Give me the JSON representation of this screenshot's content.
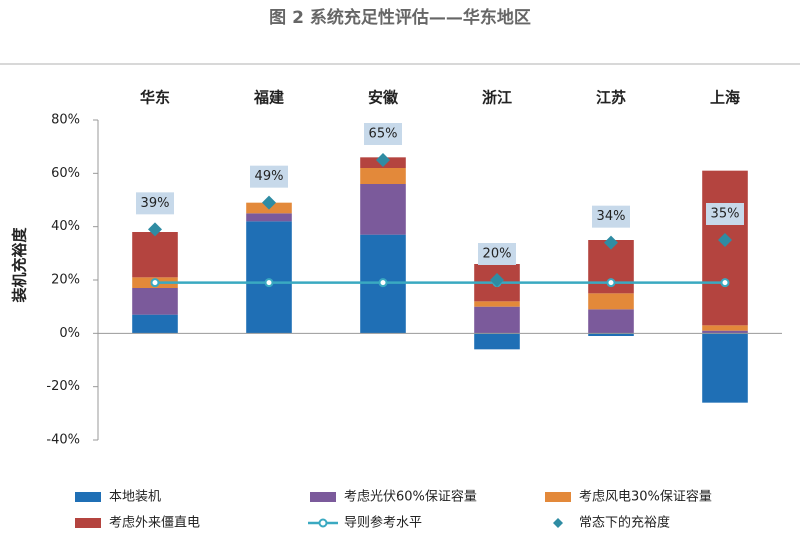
{
  "chart_data": {
    "type": "bar",
    "title": "图 2 系统充足性评估——华东地区",
    "y_label": "装机充裕度",
    "categories": [
      "华东",
      "福建",
      "安徽",
      "浙江",
      "江苏",
      "上海"
    ],
    "ylim": [
      -40,
      80
    ],
    "yticks": [
      {
        "value": -40,
        "label": "-40%"
      },
      {
        "value": -20,
        "label": "-20%"
      },
      {
        "value": 0,
        "label": "0%"
      },
      {
        "value": 20,
        "label": "20%"
      },
      {
        "value": 40,
        "label": "40%"
      },
      {
        "value": 60,
        "label": "60%"
      },
      {
        "value": 80,
        "label": "80%"
      }
    ],
    "series": [
      {
        "name": "本地装机",
        "type": "bar",
        "color": "#1f6fb5",
        "values": [
          7,
          42,
          37,
          -6,
          -1,
          -26
        ]
      },
      {
        "name": "考虑光伏60%保证容量",
        "type": "bar",
        "color": "#7b5a9b",
        "values": [
          10,
          3,
          19,
          10,
          9,
          1
        ]
      },
      {
        "name": "考虑风电30%保证容量",
        "type": "bar",
        "color": "#e3893a",
        "values": [
          4,
          4,
          6,
          2,
          6,
          2
        ]
      },
      {
        "name": "考虑外来僵直电",
        "type": "bar",
        "color": "#b4443f",
        "values": [
          17,
          0,
          4,
          14,
          20,
          58
        ]
      },
      {
        "name": "导则参考水平",
        "type": "line",
        "color": "#3aa9c1",
        "values": [
          19,
          19,
          19,
          19,
          19,
          19
        ]
      },
      {
        "name": "常态下的充裕度",
        "type": "scatter",
        "color": "#2f8ca3",
        "values": [
          39,
          49,
          65,
          20,
          34,
          35
        ],
        "value_labels": [
          "39%",
          "49%",
          "65%",
          "20%",
          "34%",
          "35%"
        ]
      }
    ]
  }
}
